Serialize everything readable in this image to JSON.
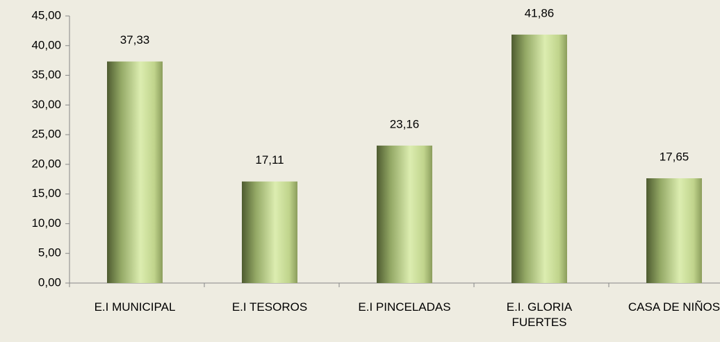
{
  "chart_data": {
    "type": "bar",
    "categories": [
      "E.I MUNICIPAL",
      "E.I TESOROS",
      "E.I PINCELADAS",
      "E.I. GLORIA FUERTES",
      "CASA DE NIÑOS"
    ],
    "values": [
      37.33,
      17.11,
      23.16,
      41.86,
      17.65
    ],
    "value_labels": [
      "37,33",
      "17,11",
      "23,16",
      "41,86",
      "17,65"
    ],
    "color": "#c5d98f",
    "ylim": [
      0,
      45
    ],
    "yticks": [
      {
        "value": 0,
        "label": "0,00"
      },
      {
        "value": 5,
        "label": "5,00"
      },
      {
        "value": 10,
        "label": "10,00"
      },
      {
        "value": 15,
        "label": "15,00"
      },
      {
        "value": 20,
        "label": "20,00"
      },
      {
        "value": 25,
        "label": "25,00"
      },
      {
        "value": 30,
        "label": "30,00"
      },
      {
        "value": 35,
        "label": "35,00"
      },
      {
        "value": 40,
        "label": "40,00"
      },
      {
        "value": 45,
        "label": "45,00"
      }
    ],
    "grid": false
  }
}
